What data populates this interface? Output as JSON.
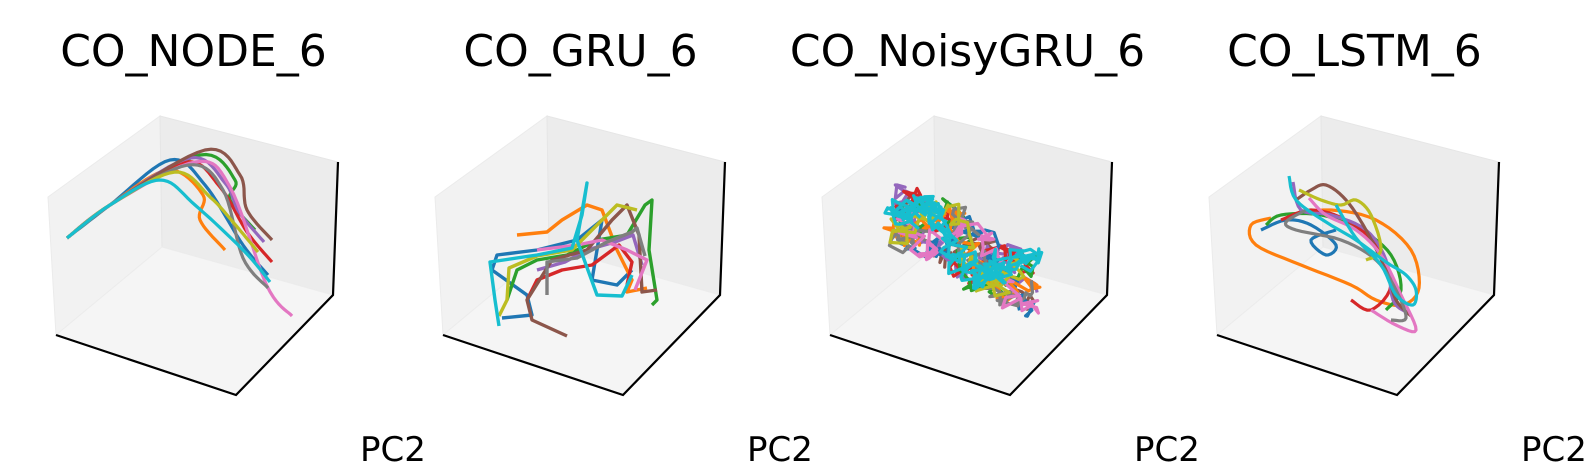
{
  "panels": [
    {
      "title": "CO_NODE_6",
      "xlabel": "PC2"
    },
    {
      "title": "CO_GRU_6",
      "xlabel": "PC2"
    },
    {
      "title": "CO_NoisyGRU_6",
      "xlabel": "PC2"
    },
    {
      "title": "CO_LSTM_6",
      "xlabel": "PC2"
    }
  ],
  "chart_data": [
    {
      "type": "line",
      "title": "CO_NODE_6",
      "projection": "3d",
      "xlabel": "PC2",
      "grid": false
    },
    {
      "type": "line",
      "title": "CO_GRU_6",
      "projection": "3d",
      "xlabel": "PC2",
      "grid": false
    },
    {
      "type": "line",
      "title": "CO_NoisyGRU_6",
      "projection": "3d",
      "xlabel": "PC2",
      "grid": false
    },
    {
      "type": "line",
      "title": "CO_LSTM_6",
      "projection": "3d",
      "xlabel": "PC2",
      "grid": false
    }
  ],
  "series_colors": [
    "#1f77b4",
    "#ff7f0e",
    "#2ca02c",
    "#d62728",
    "#9467bd",
    "#8c564b",
    "#e377c2",
    "#7f7f7f",
    "#bcbd22",
    "#17becf"
  ]
}
